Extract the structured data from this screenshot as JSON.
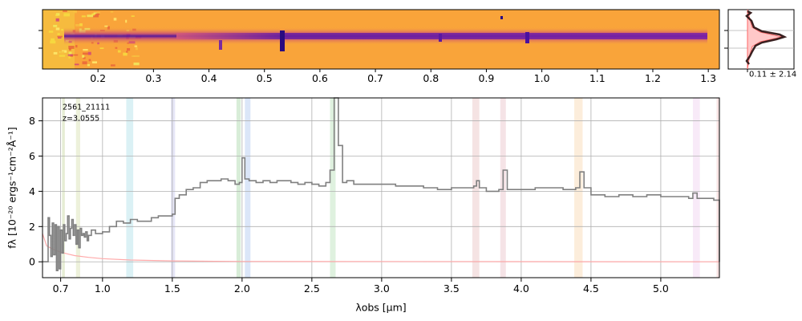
{
  "chart_data": [
    {
      "id": "spectrum-2d",
      "type": "heatmap",
      "colormap": "plasma",
      "top_axis_ticks": [
        "0.2",
        "0.3",
        "0.4",
        "0.5",
        "0.6",
        "0.7",
        "0.8",
        "0.9",
        "1.0",
        "1.1",
        "1.2",
        "1.3"
      ],
      "top_axis_tick_values": [
        0.2,
        0.3,
        0.4,
        0.5,
        0.6,
        0.7,
        0.8,
        0.9,
        1.0,
        1.1,
        1.2,
        1.3
      ],
      "xlim": [
        0.1,
        1.32
      ]
    },
    {
      "id": "profile",
      "type": "line",
      "annotation": "0.11 ± 2.14",
      "colors": {
        "profile": "#333333",
        "model": "#ff6666",
        "fill": "#ffc8c8"
      }
    },
    {
      "id": "spectrum-1d",
      "type": "line",
      "title": "",
      "id_label": "2561_21111",
      "z_label": "z=3.0555",
      "xlabel": "λobs [μm]",
      "ylabel": "fλ [10⁻²⁰ ergs⁻¹cm⁻²Å⁻¹]",
      "xlim": [
        0.57,
        5.42
      ],
      "ylim": [
        -0.9,
        9.3
      ],
      "x_tick_values": [
        0.7,
        1.0,
        1.5,
        2.0,
        2.5,
        3.0,
        3.5,
        4.0,
        4.5,
        5.0
      ],
      "x_tick_labels": [
        "0.7",
        "1.0",
        "1.5",
        "2.0",
        "2.5",
        "3.0",
        "3.5",
        "4.0",
        "4.5",
        "5.0"
      ],
      "y_tick_values": [
        0,
        2,
        4,
        6,
        8
      ],
      "y_tick_labels": [
        "0",
        "2",
        "4",
        "6",
        "8"
      ],
      "grid": true,
      "colors": {
        "spectrum": "#808080",
        "model": "#ffaaaa"
      },
      "spectrum": {
        "x": [
          0.57,
          0.6,
          0.61,
          0.62,
          0.63,
          0.64,
          0.65,
          0.66,
          0.67,
          0.68,
          0.69,
          0.7,
          0.71,
          0.72,
          0.73,
          0.74,
          0.75,
          0.76,
          0.77,
          0.78,
          0.79,
          0.8,
          0.81,
          0.82,
          0.83,
          0.84,
          0.85,
          0.86,
          0.87,
          0.88,
          0.89,
          0.9,
          0.92,
          0.95,
          1.0,
          1.05,
          1.1,
          1.15,
          1.2,
          1.25,
          1.3,
          1.35,
          1.4,
          1.45,
          1.5,
          1.52,
          1.55,
          1.6,
          1.65,
          1.7,
          1.75,
          1.8,
          1.85,
          1.9,
          1.95,
          1.98,
          2.0,
          2.02,
          2.05,
          2.1,
          2.15,
          2.2,
          2.25,
          2.3,
          2.35,
          2.4,
          2.45,
          2.5,
          2.55,
          2.6,
          2.63,
          2.66,
          2.69,
          2.72,
          2.75,
          2.8,
          2.9,
          3.0,
          3.1,
          3.2,
          3.3,
          3.4,
          3.5,
          3.6,
          3.66,
          3.68,
          3.7,
          3.75,
          3.8,
          3.84,
          3.87,
          3.9,
          4.0,
          4.1,
          4.2,
          4.3,
          4.39,
          4.42,
          4.45,
          4.5,
          4.6,
          4.7,
          4.8,
          4.9,
          5.0,
          5.1,
          5.2,
          5.23,
          5.26,
          5.3,
          5.35,
          5.38,
          5.42
        ],
        "y": [
          0,
          0,
          2.5,
          1.5,
          0.3,
          2.2,
          0.4,
          2.1,
          -0.5,
          2.0,
          -0.4,
          1.8,
          0.5,
          2.1,
          1.2,
          1.6,
          2.6,
          1.3,
          1.9,
          2.4,
          1.5,
          2.1,
          1.0,
          1.8,
          0.8,
          1.9,
          1.5,
          1.6,
          1.4,
          1.7,
          1.2,
          1.5,
          1.8,
          1.6,
          1.7,
          2.0,
          2.3,
          2.2,
          2.4,
          2.3,
          2.3,
          2.5,
          2.6,
          2.6,
          2.7,
          3.6,
          3.8,
          4.1,
          4.2,
          4.5,
          4.6,
          4.6,
          4.7,
          4.6,
          4.4,
          4.5,
          5.9,
          4.7,
          4.6,
          4.5,
          4.6,
          4.5,
          4.6,
          4.6,
          4.5,
          4.4,
          4.5,
          4.4,
          4.3,
          4.5,
          5.2,
          9.3,
          6.6,
          4.5,
          4.6,
          4.4,
          4.4,
          4.4,
          4.3,
          4.3,
          4.2,
          4.1,
          4.2,
          4.2,
          4.3,
          4.6,
          4.2,
          4.0,
          4.0,
          4.1,
          5.2,
          4.1,
          4.1,
          4.2,
          4.2,
          4.1,
          4.2,
          5.1,
          4.2,
          3.8,
          3.7,
          3.8,
          3.7,
          3.8,
          3.7,
          3.7,
          3.6,
          3.9,
          3.6,
          3.6,
          3.6,
          3.5,
          0
        ]
      },
      "model": {
        "x": [
          0.57,
          0.6,
          0.65,
          0.7,
          0.75,
          0.8,
          0.9,
          1.0,
          1.2,
          1.5,
          1.8,
          2.0,
          5.42
        ],
        "y": [
          1.6,
          0.9,
          0.7,
          0.55,
          0.45,
          0.35,
          0.25,
          0.18,
          0.1,
          0.05,
          0.03,
          0.02,
          0.0
        ]
      },
      "line_bands": [
        {
          "x0": 0.71,
          "x1": 0.73,
          "color": "#c8d8a0"
        },
        {
          "x0": 0.81,
          "x1": 0.84,
          "color": "#d8e0b0"
        },
        {
          "x0": 1.17,
          "x1": 1.22,
          "color": "#b0e0e8"
        },
        {
          "x0": 1.49,
          "x1": 1.52,
          "color": "#c8c8f0"
        },
        {
          "x0": 1.96,
          "x1": 1.99,
          "color": "#a8d8a8"
        },
        {
          "x0": 2.02,
          "x1": 2.06,
          "color": "#b0c8f0"
        },
        {
          "x0": 2.63,
          "x1": 2.67,
          "color": "#b8e0b8"
        },
        {
          "x0": 3.65,
          "x1": 3.7,
          "color": "#e8c0c0"
        },
        {
          "x0": 3.85,
          "x1": 3.89,
          "color": "#e8c0c8"
        },
        {
          "x0": 4.38,
          "x1": 4.44,
          "color": "#f8d8b0"
        },
        {
          "x0": 5.23,
          "x1": 5.28,
          "color": "#f0d0f0"
        },
        {
          "x0": 5.4,
          "x1": 5.42,
          "color": "#f0c0c0"
        }
      ]
    }
  ]
}
